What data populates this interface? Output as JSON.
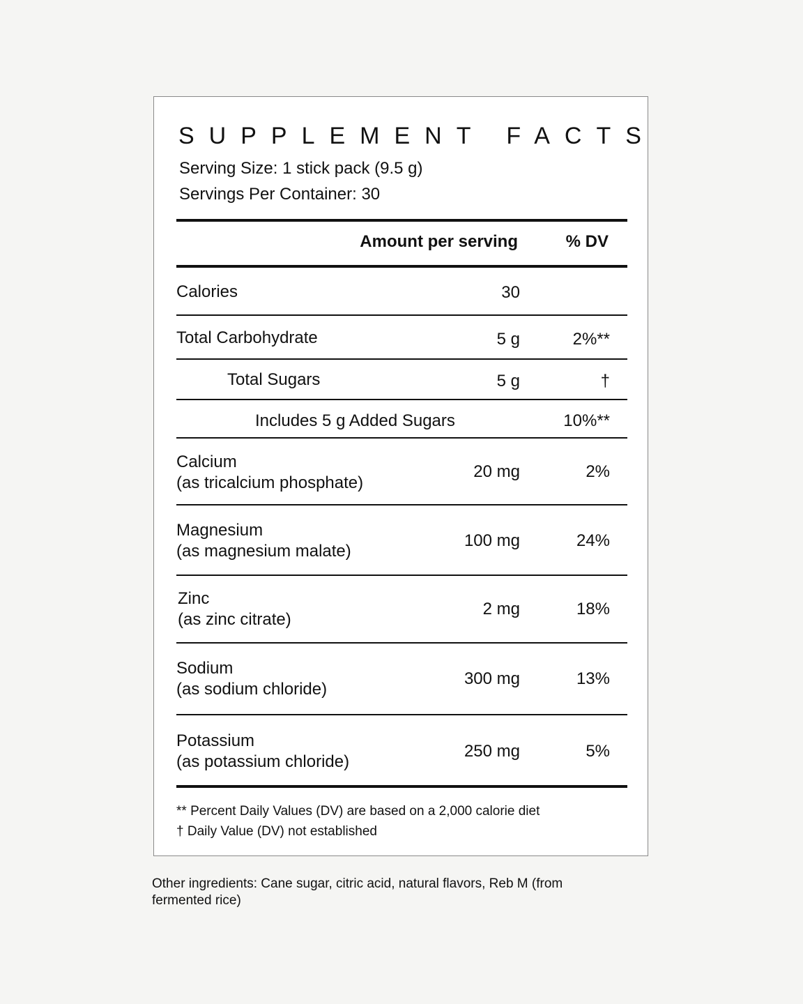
{
  "label": {
    "title": "SUPPLEMENT FACTS",
    "serving_size": "Serving Size: 1 stick pack (9.5 g)",
    "servings_per_container": "Servings Per Container: 30",
    "header": {
      "amount": "Amount per serving",
      "dv": "% DV"
    },
    "rows": {
      "calories": {
        "name": "Calories",
        "amount": "30",
        "dv": ""
      },
      "total_carbohydrate": {
        "name": "Total Carbohydrate",
        "amount": "5 g",
        "dv": "2%**"
      },
      "total_sugars": {
        "name": "Total Sugars",
        "amount": "5 g",
        "dv": "†"
      },
      "added_sugars": {
        "name": "Includes 5 g Added Sugars",
        "dv": "10%**"
      },
      "calcium": {
        "name": "Calcium",
        "source": "(as tricalcium phosphate)",
        "amount": "20 mg",
        "dv": "2%"
      },
      "magnesium": {
        "name": "Magnesium",
        "source": "(as magnesium malate)",
        "amount": "100 mg",
        "dv": "24%"
      },
      "zinc": {
        "name": "Zinc",
        "source": "(as zinc citrate)",
        "amount": "2 mg",
        "dv": "18%"
      },
      "sodium": {
        "name": "Sodium",
        "source": "(as sodium chloride)",
        "amount": "300 mg",
        "dv": "13%"
      },
      "potassium": {
        "name": "Potassium",
        "source": "(as potassium chloride)",
        "amount": "250 mg",
        "dv": "5%"
      }
    },
    "footnotes": {
      "dv_basis": "** Percent Daily Values (DV) are based on a 2,000 calorie diet",
      "not_established": "† Daily Value (DV) not established"
    }
  },
  "other_ingredients": "Other ingredients: Cane sugar, citric acid, natural flavors, Reb M (from fermented rice)"
}
